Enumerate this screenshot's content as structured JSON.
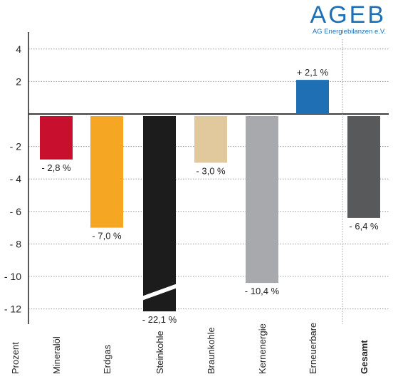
{
  "logo": {
    "main": "AGEB",
    "sub": "AG Energiebilanzen e.V."
  },
  "chart_data": {
    "type": "bar",
    "xlabel": "Prozent",
    "ylim": [
      -13,
      4.5
    ],
    "yticks": [
      4,
      2,
      -2,
      -4,
      -6,
      -8,
      -10,
      -12
    ],
    "ytick_labels": [
      "4",
      "2",
      "- 2",
      "- 4",
      "- 6",
      "- 8",
      "- 10",
      "- 12"
    ],
    "grid": true,
    "categories": [
      "Mineralöl",
      "Erdgas",
      "Steinkohle",
      "Braunkohle",
      "Kernenergie",
      "Erneuerbare",
      "Gesamt"
    ],
    "values": [
      -2.8,
      -7.0,
      -22.1,
      -3.0,
      -10.4,
      2.1,
      -6.4
    ],
    "data_labels": [
      "- 2,8 %",
      "- 7,0 %",
      "- 22,1 %",
      "- 3,0 %",
      "- 10,4 %",
      "+ 2,1 %",
      "- 6,4 %"
    ],
    "colors": [
      "#c8102e",
      "#f5a623",
      "#1c1c1c",
      "#e2c99d",
      "#a7a9ac",
      "#1f6fb5",
      "#58595b"
    ],
    "broken_axis_bar": "Steinkohle",
    "bold_category": "Gesamt"
  }
}
